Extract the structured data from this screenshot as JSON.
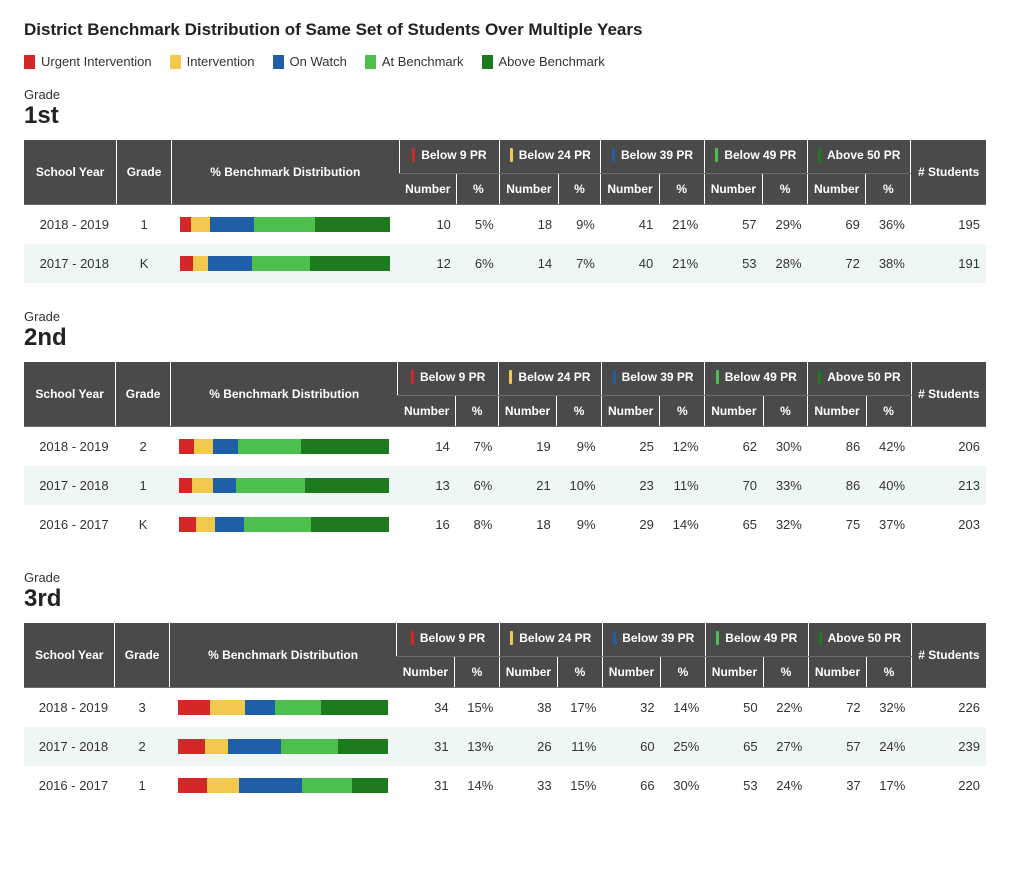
{
  "title": "District Benchmark Distribution of Same Set of Students Over Multiple Years",
  "legend": {
    "items": [
      {
        "label": "Urgent Intervention",
        "color": "#d62728"
      },
      {
        "label": "Intervention",
        "color": "#f2c94c"
      },
      {
        "label": "On Watch",
        "color": "#1f5fa8"
      },
      {
        "label": "At Benchmark",
        "color": "#4dbf4d"
      },
      {
        "label": "Above Benchmark",
        "color": "#1e7a1e"
      }
    ]
  },
  "header_colors": {
    "bg": "#4a4a4a",
    "text": "#ffffff",
    "divider": "#ffffff"
  },
  "row_alt_bg": "#eef7f6",
  "columns": {
    "school_year": "School Year",
    "grade": "Grade",
    "distribution": "% Benchmark Distribution",
    "groups": [
      {
        "label": "Below 9 PR",
        "tick_color": "#d62728"
      },
      {
        "label": "Below 24 PR",
        "tick_color": "#f2c94c"
      },
      {
        "label": "Below 39 PR",
        "tick_color": "#1f5fa8"
      },
      {
        "label": "Below 49 PR",
        "tick_color": "#4dbf4d"
      },
      {
        "label": "Above 50 PR",
        "tick_color": "#1e7a1e"
      }
    ],
    "number": "Number",
    "percent": "%",
    "students": "# Students"
  },
  "grade_label": "Grade",
  "sections": [
    {
      "grade_title": "1st",
      "rows": [
        {
          "year": "2018 - 2019",
          "grade": "1",
          "dist": [
            5,
            9,
            21,
            29,
            36
          ],
          "cells": [
            [
              10,
              "5%"
            ],
            [
              18,
              "9%"
            ],
            [
              41,
              "21%"
            ],
            [
              57,
              "29%"
            ],
            [
              69,
              "36%"
            ]
          ],
          "students": 195
        },
        {
          "year": "2017 - 2018",
          "grade": "K",
          "dist": [
            6,
            7,
            21,
            28,
            38
          ],
          "cells": [
            [
              12,
              "6%"
            ],
            [
              14,
              "7%"
            ],
            [
              40,
              "21%"
            ],
            [
              53,
              "28%"
            ],
            [
              72,
              "38%"
            ]
          ],
          "students": 191
        }
      ]
    },
    {
      "grade_title": "2nd",
      "rows": [
        {
          "year": "2018 - 2019",
          "grade": "2",
          "dist": [
            7,
            9,
            12,
            30,
            42
          ],
          "cells": [
            [
              14,
              "7%"
            ],
            [
              19,
              "9%"
            ],
            [
              25,
              "12%"
            ],
            [
              62,
              "30%"
            ],
            [
              86,
              "42%"
            ]
          ],
          "students": 206
        },
        {
          "year": "2017 - 2018",
          "grade": "1",
          "dist": [
            6,
            10,
            11,
            33,
            40
          ],
          "cells": [
            [
              13,
              "6%"
            ],
            [
              21,
              "10%"
            ],
            [
              23,
              "11%"
            ],
            [
              70,
              "33%"
            ],
            [
              86,
              "40%"
            ]
          ],
          "students": 213
        },
        {
          "year": "2016 - 2017",
          "grade": "K",
          "dist": [
            8,
            9,
            14,
            32,
            37
          ],
          "cells": [
            [
              16,
              "8%"
            ],
            [
              18,
              "9%"
            ],
            [
              29,
              "14%"
            ],
            [
              65,
              "32%"
            ],
            [
              75,
              "37%"
            ]
          ],
          "students": 203
        }
      ]
    },
    {
      "grade_title": "3rd",
      "rows": [
        {
          "year": "2018 - 2019",
          "grade": "3",
          "dist": [
            15,
            17,
            14,
            22,
            32
          ],
          "cells": [
            [
              34,
              "15%"
            ],
            [
              38,
              "17%"
            ],
            [
              32,
              "14%"
            ],
            [
              50,
              "22%"
            ],
            [
              72,
              "32%"
            ]
          ],
          "students": 226
        },
        {
          "year": "2017 - 2018",
          "grade": "2",
          "dist": [
            13,
            11,
            25,
            27,
            24
          ],
          "cells": [
            [
              31,
              "13%"
            ],
            [
              26,
              "11%"
            ],
            [
              60,
              "25%"
            ],
            [
              65,
              "27%"
            ],
            [
              57,
              "24%"
            ]
          ],
          "students": 239
        },
        {
          "year": "2016 - 2017",
          "grade": "1",
          "dist": [
            14,
            15,
            30,
            24,
            17
          ],
          "cells": [
            [
              31,
              "14%"
            ],
            [
              33,
              "15%"
            ],
            [
              66,
              "30%"
            ],
            [
              53,
              "24%"
            ],
            [
              37,
              "17%"
            ]
          ],
          "students": 220
        }
      ]
    }
  ]
}
